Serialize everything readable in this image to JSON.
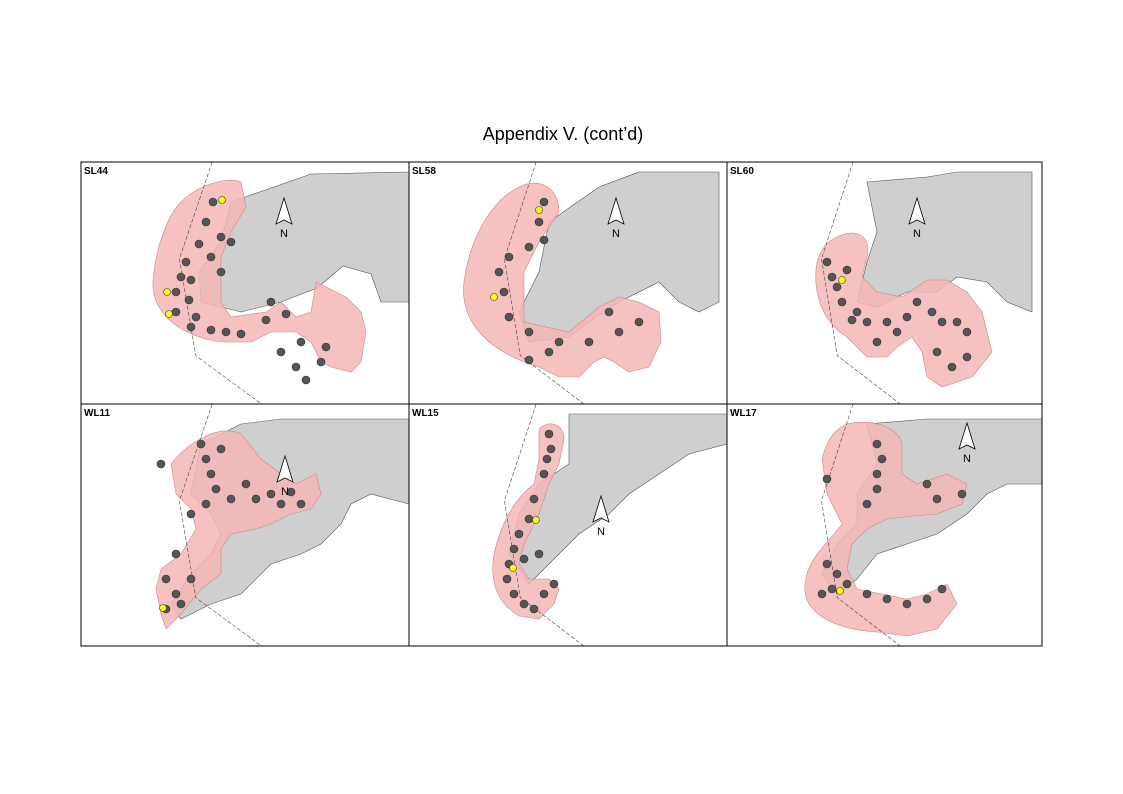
{
  "title": "Appendix V.  (cont’d)",
  "panels": [
    {
      "label": "SL44",
      "north": "N"
    },
    {
      "label": "SL58",
      "north": "N"
    },
    {
      "label": "SL60",
      "north": "N"
    },
    {
      "label": "WL11",
      "north": "N"
    },
    {
      "label": "WL15",
      "north": "N"
    },
    {
      "label": "WL17",
      "north": "N"
    }
  ]
}
